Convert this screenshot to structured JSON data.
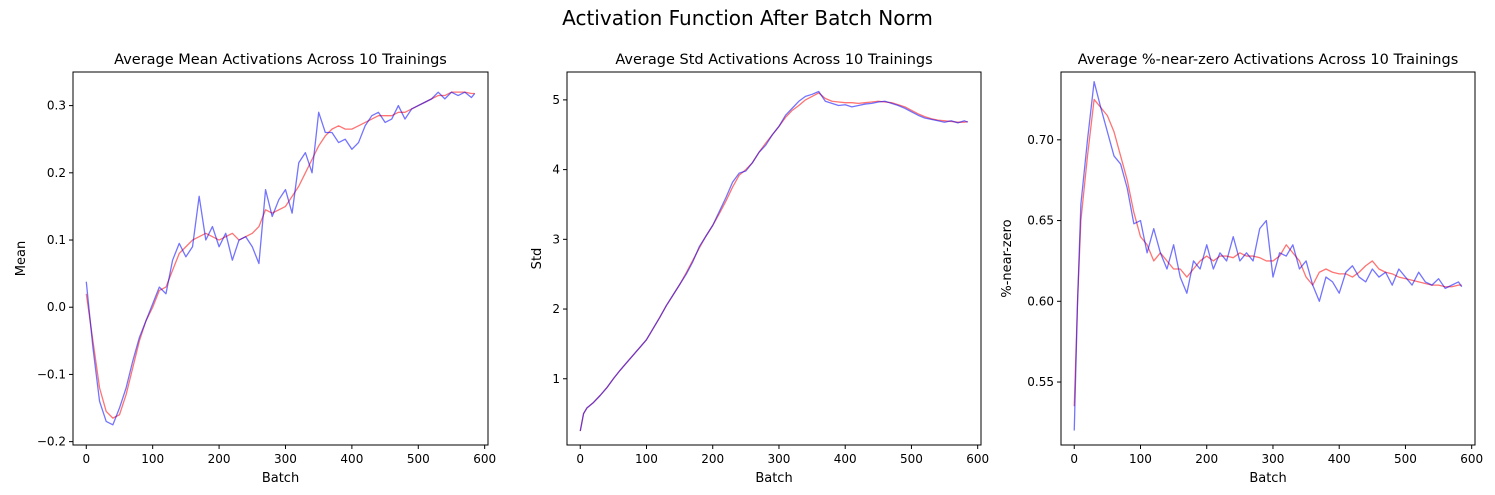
{
  "figure": {
    "suptitle": "Activation Function After Batch Norm"
  },
  "colors": {
    "series_a": "#ff0000",
    "series_b": "#0000ff"
  },
  "chart_data": [
    {
      "type": "line",
      "title": "Average Mean Activations Across 10 Trainings",
      "xlabel": "Batch",
      "ylabel": "Mean",
      "xlim": [
        -20,
        605
      ],
      "ylim": [
        -0.205,
        0.35
      ],
      "xticks": [
        0,
        100,
        200,
        300,
        400,
        500,
        600
      ],
      "yticks": [
        -0.2,
        -0.1,
        0.0,
        0.1,
        0.2,
        0.3
      ],
      "ytick_labels": [
        "−0.2",
        "−0.1",
        "0.0",
        "0.1",
        "0.2",
        "0.3"
      ],
      "grid": false,
      "series": [
        {
          "color": "#ff0000",
          "opacity": 0.55,
          "x": [
            0,
            10,
            20,
            30,
            40,
            50,
            60,
            70,
            80,
            90,
            100,
            110,
            120,
            130,
            140,
            150,
            160,
            170,
            180,
            190,
            200,
            210,
            220,
            230,
            240,
            250,
            260,
            270,
            280,
            290,
            300,
            310,
            320,
            330,
            340,
            350,
            360,
            370,
            380,
            390,
            400,
            410,
            420,
            430,
            440,
            450,
            460,
            470,
            480,
            490,
            500,
            510,
            520,
            530,
            540,
            550,
            560,
            570,
            580,
            585
          ],
          "y": [
            0.02,
            -0.05,
            -0.12,
            -0.155,
            -0.165,
            -0.16,
            -0.13,
            -0.09,
            -0.05,
            -0.02,
            0.0,
            0.025,
            0.03,
            0.055,
            0.08,
            0.09,
            0.1,
            0.105,
            0.11,
            0.105,
            0.1,
            0.105,
            0.11,
            0.1,
            0.105,
            0.11,
            0.12,
            0.145,
            0.14,
            0.145,
            0.15,
            0.165,
            0.18,
            0.2,
            0.22,
            0.24,
            0.255,
            0.265,
            0.27,
            0.265,
            0.265,
            0.27,
            0.275,
            0.28,
            0.285,
            0.285,
            0.285,
            0.29,
            0.29,
            0.295,
            0.3,
            0.305,
            0.31,
            0.315,
            0.315,
            0.32,
            0.32,
            0.32,
            0.318,
            0.318
          ]
        },
        {
          "color": "#0000ff",
          "opacity": 0.55,
          "x": [
            0,
            10,
            20,
            30,
            40,
            50,
            60,
            70,
            80,
            90,
            100,
            110,
            120,
            130,
            140,
            150,
            160,
            170,
            180,
            190,
            200,
            210,
            220,
            230,
            240,
            250,
            260,
            270,
            280,
            290,
            300,
            310,
            320,
            330,
            340,
            350,
            360,
            370,
            380,
            390,
            400,
            410,
            420,
            430,
            440,
            450,
            460,
            470,
            480,
            490,
            500,
            510,
            520,
            530,
            540,
            550,
            560,
            570,
            580,
            585
          ],
          "y": [
            0.038,
            -0.06,
            -0.14,
            -0.17,
            -0.175,
            -0.15,
            -0.12,
            -0.08,
            -0.045,
            -0.02,
            0.005,
            0.03,
            0.02,
            0.07,
            0.095,
            0.075,
            0.09,
            0.165,
            0.1,
            0.12,
            0.09,
            0.11,
            0.07,
            0.1,
            0.105,
            0.09,
            0.065,
            0.175,
            0.135,
            0.16,
            0.175,
            0.14,
            0.215,
            0.23,
            0.2,
            0.29,
            0.26,
            0.26,
            0.245,
            0.25,
            0.235,
            0.245,
            0.27,
            0.285,
            0.29,
            0.275,
            0.28,
            0.3,
            0.28,
            0.295,
            0.3,
            0.305,
            0.31,
            0.32,
            0.31,
            0.32,
            0.315,
            0.32,
            0.312,
            0.318
          ]
        }
      ]
    },
    {
      "type": "line",
      "title": "Average Std Activations Across 10 Trainings",
      "xlabel": "Batch",
      "ylabel": "Std",
      "xlim": [
        -20,
        605
      ],
      "ylim": [
        0.05,
        5.4
      ],
      "xticks": [
        0,
        100,
        200,
        300,
        400,
        500,
        600
      ],
      "yticks": [
        1,
        2,
        3,
        4,
        5
      ],
      "ytick_labels": [
        "1",
        "2",
        "3",
        "4",
        "5"
      ],
      "grid": false,
      "series": [
        {
          "color": "#ff0000",
          "opacity": 0.55,
          "x": [
            0,
            5,
            10,
            20,
            30,
            40,
            50,
            60,
            70,
            80,
            90,
            100,
            110,
            120,
            130,
            140,
            150,
            160,
            170,
            180,
            190,
            200,
            210,
            220,
            230,
            240,
            250,
            260,
            270,
            280,
            290,
            300,
            310,
            320,
            330,
            340,
            350,
            360,
            370,
            380,
            390,
            400,
            410,
            420,
            430,
            440,
            450,
            460,
            470,
            480,
            490,
            500,
            510,
            520,
            530,
            540,
            550,
            560,
            570,
            580,
            585
          ],
          "y": [
            0.25,
            0.5,
            0.58,
            0.66,
            0.76,
            0.87,
            1.0,
            1.12,
            1.23,
            1.34,
            1.45,
            1.56,
            1.72,
            1.88,
            2.05,
            2.2,
            2.35,
            2.52,
            2.7,
            2.88,
            3.05,
            3.2,
            3.37,
            3.55,
            3.75,
            3.92,
            4.0,
            4.1,
            4.25,
            4.38,
            4.5,
            4.62,
            4.75,
            4.85,
            4.92,
            5.0,
            5.05,
            5.1,
            5.02,
            4.98,
            4.97,
            4.96,
            4.96,
            4.95,
            4.96,
            4.97,
            4.98,
            4.97,
            4.96,
            4.93,
            4.9,
            4.85,
            4.8,
            4.76,
            4.73,
            4.71,
            4.7,
            4.69,
            4.68,
            4.68,
            4.69
          ]
        },
        {
          "color": "#0000ff",
          "opacity": 0.55,
          "x": [
            0,
            5,
            10,
            20,
            30,
            40,
            50,
            60,
            70,
            80,
            90,
            100,
            110,
            120,
            130,
            140,
            150,
            160,
            170,
            180,
            190,
            200,
            210,
            220,
            230,
            240,
            250,
            260,
            270,
            280,
            290,
            300,
            310,
            320,
            330,
            340,
            350,
            360,
            370,
            380,
            390,
            400,
            410,
            420,
            430,
            440,
            450,
            460,
            470,
            480,
            490,
            500,
            510,
            520,
            530,
            540,
            550,
            560,
            570,
            580,
            585
          ],
          "y": [
            0.25,
            0.5,
            0.58,
            0.66,
            0.76,
            0.87,
            1.0,
            1.12,
            1.23,
            1.34,
            1.45,
            1.56,
            1.72,
            1.88,
            2.05,
            2.2,
            2.35,
            2.5,
            2.68,
            2.9,
            3.05,
            3.2,
            3.4,
            3.6,
            3.82,
            3.95,
            3.98,
            4.1,
            4.25,
            4.35,
            4.5,
            4.62,
            4.78,
            4.88,
            4.98,
            5.05,
            5.08,
            5.12,
            4.98,
            4.95,
            4.92,
            4.93,
            4.9,
            4.92,
            4.94,
            4.95,
            4.97,
            4.98,
            4.95,
            4.92,
            4.88,
            4.83,
            4.78,
            4.74,
            4.72,
            4.7,
            4.68,
            4.7,
            4.67,
            4.7,
            4.68
          ]
        }
      ]
    },
    {
      "type": "line",
      "title": "Average %-near-zero Activations Across 10 Trainings",
      "xlabel": "Batch",
      "ylabel": "%-near-zero",
      "xlim": [
        -20,
        605
      ],
      "ylim": [
        0.511,
        0.742
      ],
      "xticks": [
        0,
        100,
        200,
        300,
        400,
        500,
        600
      ],
      "yticks": [
        0.55,
        0.6,
        0.65,
        0.7
      ],
      "ytick_labels": [
        "0.55",
        "0.60",
        "0.65",
        "0.70"
      ],
      "grid": false,
      "series": [
        {
          "color": "#ff0000",
          "opacity": 0.55,
          "x": [
            0,
            5,
            10,
            20,
            30,
            40,
            50,
            60,
            70,
            80,
            90,
            100,
            110,
            120,
            130,
            140,
            150,
            160,
            170,
            180,
            190,
            200,
            210,
            220,
            230,
            240,
            250,
            260,
            270,
            280,
            290,
            300,
            310,
            320,
            330,
            340,
            350,
            360,
            370,
            380,
            390,
            400,
            410,
            420,
            430,
            440,
            450,
            460,
            470,
            480,
            490,
            500,
            510,
            520,
            530,
            540,
            550,
            560,
            570,
            580,
            585
          ],
          "y": [
            0.535,
            0.6,
            0.65,
            0.69,
            0.725,
            0.72,
            0.715,
            0.705,
            0.69,
            0.675,
            0.655,
            0.64,
            0.635,
            0.625,
            0.63,
            0.625,
            0.62,
            0.62,
            0.615,
            0.62,
            0.625,
            0.628,
            0.625,
            0.628,
            0.628,
            0.627,
            0.63,
            0.628,
            0.628,
            0.627,
            0.625,
            0.625,
            0.628,
            0.635,
            0.63,
            0.625,
            0.615,
            0.61,
            0.618,
            0.62,
            0.618,
            0.617,
            0.617,
            0.615,
            0.618,
            0.622,
            0.625,
            0.62,
            0.618,
            0.617,
            0.615,
            0.614,
            0.613,
            0.612,
            0.611,
            0.61,
            0.61,
            0.609,
            0.609,
            0.61,
            0.61
          ]
        },
        {
          "color": "#0000ff",
          "opacity": 0.55,
          "x": [
            0,
            5,
            10,
            20,
            30,
            40,
            50,
            60,
            70,
            80,
            90,
            100,
            110,
            120,
            130,
            140,
            150,
            160,
            170,
            180,
            190,
            200,
            210,
            220,
            230,
            240,
            250,
            260,
            270,
            280,
            290,
            300,
            310,
            320,
            330,
            340,
            350,
            360,
            370,
            380,
            390,
            400,
            410,
            420,
            430,
            440,
            450,
            460,
            470,
            480,
            490,
            500,
            510,
            520,
            530,
            540,
            550,
            560,
            570,
            580,
            585
          ],
          "y": [
            0.52,
            0.6,
            0.66,
            0.7,
            0.736,
            0.72,
            0.705,
            0.69,
            0.685,
            0.67,
            0.648,
            0.65,
            0.63,
            0.645,
            0.63,
            0.62,
            0.635,
            0.615,
            0.605,
            0.625,
            0.62,
            0.635,
            0.62,
            0.63,
            0.625,
            0.64,
            0.625,
            0.63,
            0.625,
            0.645,
            0.65,
            0.615,
            0.63,
            0.628,
            0.635,
            0.62,
            0.625,
            0.61,
            0.6,
            0.615,
            0.612,
            0.605,
            0.618,
            0.622,
            0.615,
            0.612,
            0.62,
            0.615,
            0.618,
            0.61,
            0.62,
            0.615,
            0.61,
            0.618,
            0.612,
            0.61,
            0.614,
            0.608,
            0.61,
            0.612,
            0.609
          ]
        }
      ]
    }
  ]
}
